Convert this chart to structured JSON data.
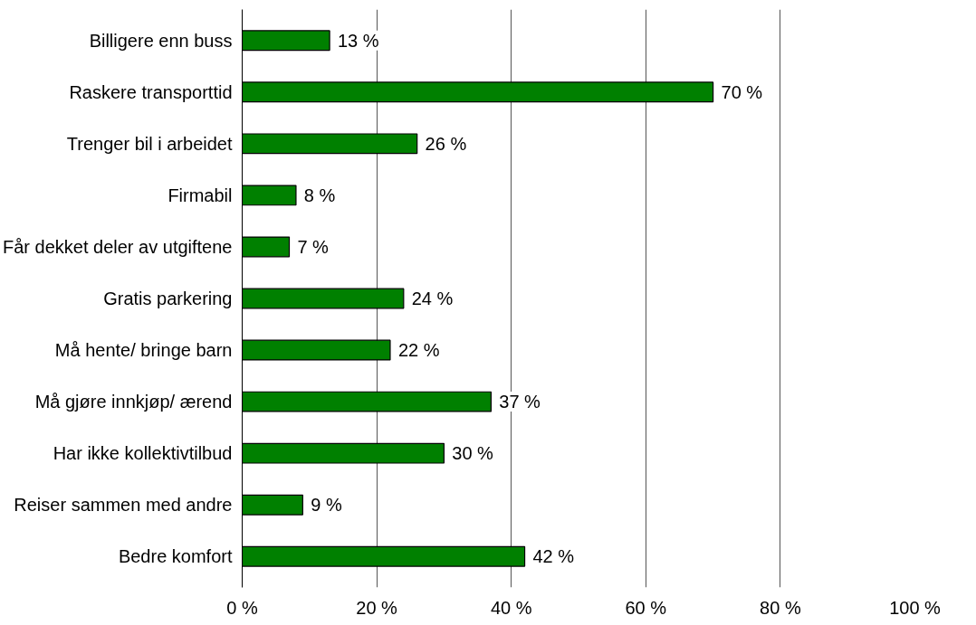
{
  "chart_data": {
    "type": "bar",
    "orientation": "horizontal",
    "categories": [
      "Billigere enn buss",
      "Raskere transporttid",
      "Trenger bil i arbeidet",
      "Firmabil",
      "Får dekket deler av utgiftene",
      "Gratis parkering",
      "Må hente/ bringe barn",
      "Må gjøre innkjøp/ ærend",
      "Har ikke kollektivtilbud",
      "Reiser sammen med andre",
      "Bedre komfort"
    ],
    "values": [
      13,
      70,
      26,
      8,
      7,
      24,
      22,
      37,
      30,
      9,
      42
    ],
    "value_labels": [
      "13 %",
      "70 %",
      "26 %",
      "8 %",
      "7 %",
      "24 %",
      "22 %",
      "37 %",
      "30 %",
      "9 %",
      "42 %"
    ],
    "color": "#008000",
    "xlim": [
      0,
      100
    ],
    "xticks": [
      {
        "value": 0,
        "label": "0 %"
      },
      {
        "value": 20,
        "label": "20 %"
      },
      {
        "value": 40,
        "label": "40 %"
      },
      {
        "value": 60,
        "label": "60 %"
      },
      {
        "value": 80,
        "label": "80 %"
      },
      {
        "value": 100,
        "label": "100 %"
      }
    ],
    "grid": "x"
  }
}
